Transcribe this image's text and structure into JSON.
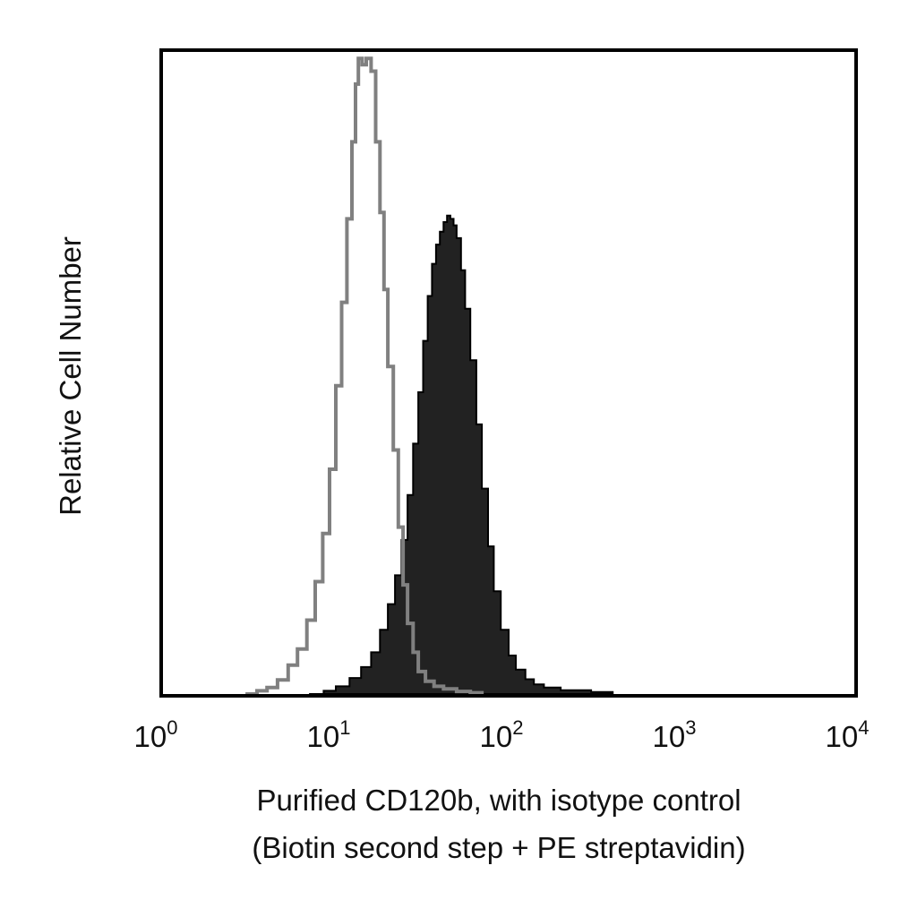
{
  "chart_data": {
    "type": "area",
    "xscale": "log",
    "xlim": [
      1,
      10000
    ],
    "ylim": [
      0,
      100
    ],
    "grid": false,
    "title": "",
    "xlabel_lines": [
      "Purified CD120b, with isotype control",
      "(Biotin second step + PE streptavidin)"
    ],
    "ylabel": "Relative Cell Number",
    "yticks_shown": false,
    "xticks": [
      {
        "base": "10",
        "exp": "0",
        "value": 1
      },
      {
        "base": "10",
        "exp": "1",
        "value": 10
      },
      {
        "base": "10",
        "exp": "2",
        "value": 100
      },
      {
        "base": "10",
        "exp": "3",
        "value": 1000
      },
      {
        "base": "10",
        "exp": "4",
        "value": 10000
      }
    ],
    "series": [
      {
        "role": "isotype-control",
        "style": "outline",
        "color": "#808080",
        "points": [
          [
            3.0,
            0
          ],
          [
            3.5,
            0.5
          ],
          [
            4.0,
            1.0
          ],
          [
            4.6,
            2.2
          ],
          [
            5.3,
            4.5
          ],
          [
            6.0,
            7.0
          ],
          [
            6.8,
            11.5
          ],
          [
            7.6,
            17.5
          ],
          [
            8.4,
            25.0
          ],
          [
            9.2,
            35.0
          ],
          [
            10.0,
            48.0
          ],
          [
            10.8,
            61.0
          ],
          [
            11.6,
            74.0
          ],
          [
            12.4,
            86.0
          ],
          [
            13.0,
            95.0
          ],
          [
            13.5,
            99.0
          ],
          [
            14.2,
            98.0
          ],
          [
            15.0,
            99.0
          ],
          [
            16.0,
            97.0
          ],
          [
            17.0,
            86.0
          ],
          [
            18.0,
            75.0
          ],
          [
            19.0,
            63.0
          ],
          [
            20.0,
            51.0
          ],
          [
            21.5,
            38.0
          ],
          [
            23.0,
            26.0
          ],
          [
            24.5,
            17.0
          ],
          [
            26.0,
            11.0
          ],
          [
            28.0,
            6.5
          ],
          [
            30.0,
            3.5
          ],
          [
            33.0,
            2.0
          ],
          [
            37.0,
            1.2
          ],
          [
            42.0,
            0.8
          ],
          [
            50.0,
            0.4
          ],
          [
            60.0,
            0.2
          ],
          [
            70.0,
            0
          ]
        ]
      },
      {
        "role": "purified-cd120b",
        "style": "filled",
        "color": "#222222",
        "points": [
          [
            7.0,
            0
          ],
          [
            8.5,
            0.5
          ],
          [
            10.0,
            1.2
          ],
          [
            12.0,
            2.5
          ],
          [
            14.0,
            4.2
          ],
          [
            16.0,
            6.5
          ],
          [
            18.0,
            10.0
          ],
          [
            20.0,
            14.0
          ],
          [
            22.0,
            18.5
          ],
          [
            24.0,
            24.0
          ],
          [
            26.0,
            31.0
          ],
          [
            28.0,
            39.0
          ],
          [
            30.0,
            47.0
          ],
          [
            32.0,
            55.0
          ],
          [
            34.0,
            62.0
          ],
          [
            36.0,
            67.0
          ],
          [
            38.0,
            70.0
          ],
          [
            40.0,
            72.0
          ],
          [
            42.0,
            73.5
          ],
          [
            44.0,
            74.5
          ],
          [
            46.0,
            74.0
          ],
          [
            48.0,
            73.0
          ],
          [
            50.0,
            71.0
          ],
          [
            53.0,
            66.0
          ],
          [
            56.0,
            60.0
          ],
          [
            60.0,
            52.0
          ],
          [
            65.0,
            42.0
          ],
          [
            70.0,
            32.0
          ],
          [
            76.0,
            23.0
          ],
          [
            82.0,
            16.0
          ],
          [
            90.0,
            10.0
          ],
          [
            100.0,
            6.0
          ],
          [
            110.0,
            3.8
          ],
          [
            125.0,
            2.3
          ],
          [
            140.0,
            1.5
          ],
          [
            160.0,
            1.0
          ],
          [
            200.0,
            0.6
          ],
          [
            300.0,
            0.3
          ],
          [
            400.0,
            0
          ]
        ]
      }
    ]
  }
}
